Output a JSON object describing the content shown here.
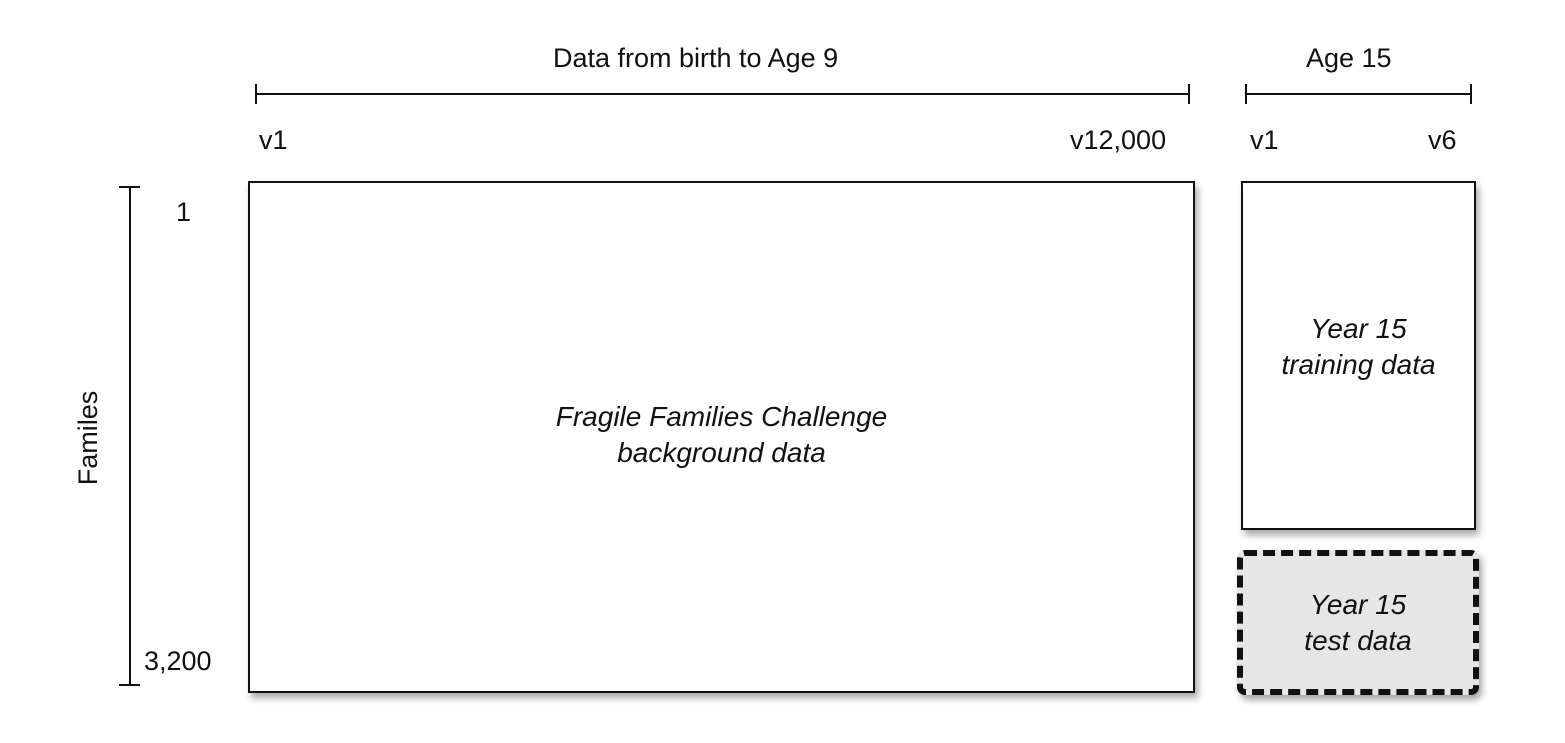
{
  "header": {
    "background_span_label": "Data from birth to Age 9",
    "age15_span_label": "Age 15"
  },
  "columns": {
    "background_first": "v1",
    "background_last": "v12,000",
    "age15_first": "v1",
    "age15_last": "v6"
  },
  "rows": {
    "axis_label": "Familes",
    "first": "1",
    "last": "3,200"
  },
  "boxes": {
    "background": {
      "line1": "Fragile Families Challenge",
      "line2": "background data"
    },
    "training": {
      "line1": "Year 15",
      "line2": "training data"
    },
    "test": {
      "line1": "Year 15",
      "line2": "test data"
    }
  },
  "colors": {
    "line": "#111111",
    "test_fill": "#e6e6e6",
    "box_fill": "#ffffff"
  }
}
